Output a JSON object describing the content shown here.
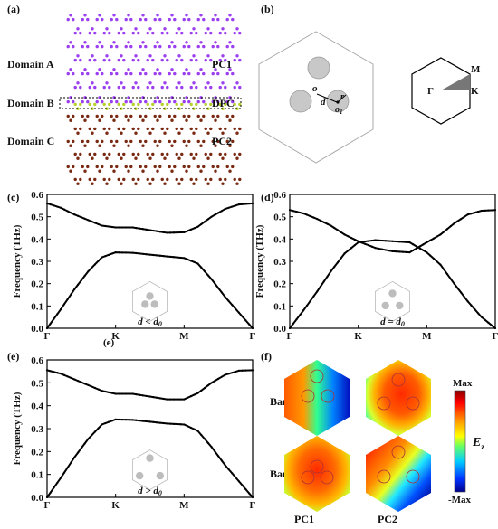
{
  "figure": {
    "panel_labels": [
      "(a)",
      "(b)",
      "(c)",
      "(d)",
      "(e)",
      "(f)"
    ],
    "stray_label_c": "(e)"
  },
  "panel_a": {
    "domains": [
      "Domain A",
      "Domain B",
      "Domain C"
    ],
    "phases": [
      "PC1",
      "DPC",
      "PC2"
    ],
    "colors": {
      "pc1": "#9b3ff0",
      "interface": "#b6d22c",
      "pc2": "#7a2a12"
    }
  },
  "panel_b": {
    "center_label": "o",
    "center_label2": "o",
    "center_sub": "1",
    "d_label": "d",
    "r_label": "r",
    "bz_points": [
      "Γ",
      "M",
      "K"
    ]
  },
  "band_panels": {
    "ylabel": "Frequency (THz)",
    "xticks": [
      "Γ",
      "K",
      "M",
      "Γ"
    ],
    "yticks": [
      "0.0",
      "0.1",
      "0.2",
      "0.3",
      "0.4",
      "0.5",
      "0.6"
    ],
    "conditions": {
      "c": {
        "var": "d",
        "op": "<",
        "ref": "d",
        "sub": "0"
      },
      "d": {
        "var": "d",
        "op": "=",
        "ref": "d",
        "sub": "0"
      },
      "e": {
        "var": "d",
        "op": ">",
        "ref": "d",
        "sub": "0"
      }
    }
  },
  "panel_f": {
    "rows": [
      "Band 2",
      "Band 1"
    ],
    "cols": [
      "PC1",
      "PC2"
    ],
    "colorbar": {
      "max": "Max",
      "min": "-Max",
      "symbol": "E",
      "sub": "z"
    }
  },
  "chart_data": [
    {
      "type": "line",
      "title": "",
      "xlabel": "",
      "ylabel": "Frequency (THz)",
      "ylim": [
        0,
        0.6
      ],
      "xticks": [
        "Γ",
        "K",
        "M",
        "Γ"
      ],
      "series": [
        {
          "x": [
            0,
            0.2,
            0.4,
            0.6,
            0.8,
            1,
            1.25,
            1.5,
            1.75,
            2,
            2.2,
            2.4,
            2.6,
            2.8,
            3
          ],
          "values": [
            0.56,
            0.54,
            0.51,
            0.485,
            0.46,
            0.452,
            0.452,
            0.44,
            0.428,
            0.43,
            0.455,
            0.5,
            0.535,
            0.555,
            0.56
          ]
        },
        {
          "x": [
            0,
            0.2,
            0.4,
            0.6,
            0.8,
            1,
            1.25,
            1.5,
            1.75,
            2,
            2.2,
            2.4,
            2.6,
            2.8,
            3
          ],
          "values": [
            0.0,
            0.085,
            0.175,
            0.255,
            0.318,
            0.34,
            0.338,
            0.33,
            0.322,
            0.315,
            0.29,
            0.22,
            0.14,
            0.07,
            0.0
          ]
        }
      ]
    },
    {
      "type": "line",
      "title": "",
      "xlabel": "",
      "ylabel": "Frequency (THz)",
      "ylim": [
        0,
        0.6
      ],
      "xticks": [
        "Γ",
        "K",
        "M",
        "Γ"
      ],
      "series": [
        {
          "x": [
            0,
            0.2,
            0.4,
            0.6,
            0.8,
            1,
            1.25,
            1.5,
            1.75,
            2,
            2.2,
            2.4,
            2.6,
            2.8,
            3
          ],
          "values": [
            0.53,
            0.515,
            0.49,
            0.46,
            0.42,
            0.39,
            0.36,
            0.345,
            0.34,
            0.385,
            0.42,
            0.47,
            0.51,
            0.527,
            0.53
          ]
        },
        {
          "x": [
            0,
            0.2,
            0.4,
            0.6,
            0.8,
            1,
            1.25,
            1.5,
            1.75,
            2,
            2.2,
            2.4,
            2.6,
            2.8,
            3
          ],
          "values": [
            0.0,
            0.08,
            0.165,
            0.255,
            0.335,
            0.385,
            0.395,
            0.39,
            0.385,
            0.34,
            0.285,
            0.2,
            0.12,
            0.05,
            0.0
          ]
        }
      ]
    },
    {
      "type": "line",
      "title": "",
      "xlabel": "",
      "ylabel": "Frequency (THz)",
      "ylim": [
        0,
        0.6
      ],
      "xticks": [
        "Γ",
        "K",
        "M",
        "Γ"
      ],
      "series": [
        {
          "x": [
            0,
            0.2,
            0.4,
            0.6,
            0.8,
            1,
            1.25,
            1.5,
            1.75,
            2,
            2.2,
            2.4,
            2.6,
            2.8,
            3
          ],
          "values": [
            0.555,
            0.54,
            0.515,
            0.49,
            0.465,
            0.452,
            0.452,
            0.44,
            0.428,
            0.428,
            0.455,
            0.5,
            0.535,
            0.553,
            0.555
          ]
        },
        {
          "x": [
            0,
            0.2,
            0.4,
            0.6,
            0.8,
            1,
            1.25,
            1.5,
            1.75,
            2,
            2.2,
            2.4,
            2.6,
            2.8,
            3
          ],
          "values": [
            0.0,
            0.085,
            0.175,
            0.255,
            0.318,
            0.34,
            0.338,
            0.33,
            0.322,
            0.318,
            0.29,
            0.22,
            0.14,
            0.07,
            0.0
          ]
        }
      ]
    }
  ]
}
